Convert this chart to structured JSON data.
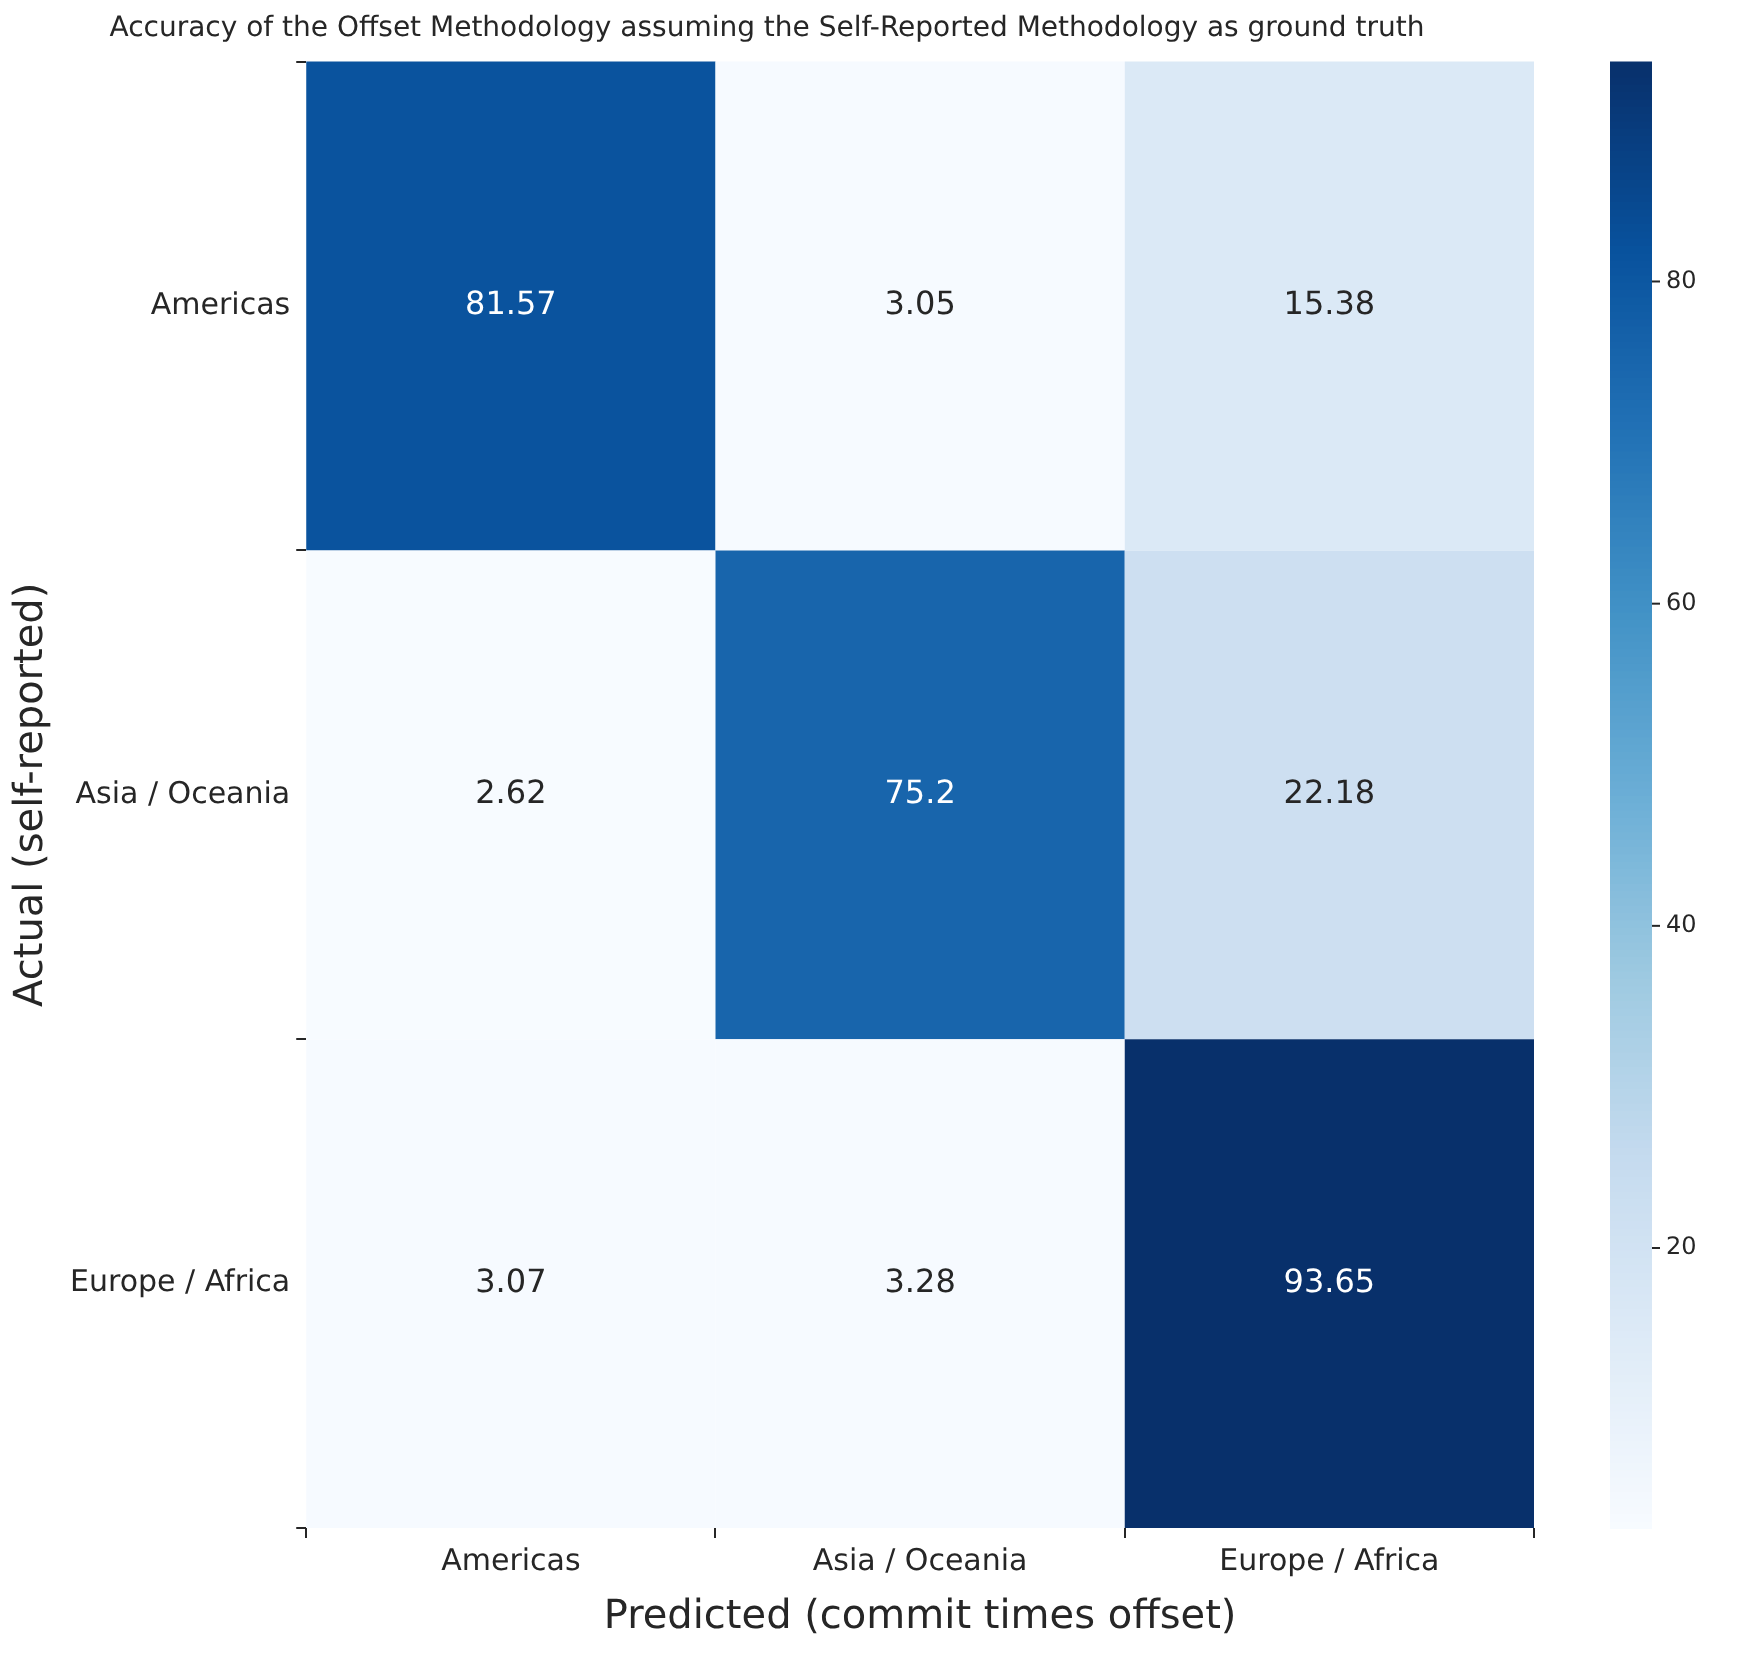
{
  "chart_data": {
    "type": "heatmap",
    "title": "Accuracy of the Offset Methodology assuming the Self-Reported Methodology as ground truth",
    "xlabel": "Predicted (commit times offset)",
    "ylabel": "Actual (self-reported)",
    "categories": [
      "Americas",
      "Asia / Oceania",
      "Europe / Africa"
    ],
    "y_categories": [
      "Americas",
      "Asia / Oceania",
      "Europe / Africa"
    ],
    "cells": [
      [
        81.57,
        3.05,
        15.38
      ],
      [
        2.62,
        75.2,
        22.18
      ],
      [
        3.07,
        3.28,
        93.65
      ]
    ],
    "clim": [
      2.62,
      93.65
    ],
    "cticks": [
      20,
      40,
      60,
      80
    ],
    "data_labels": true,
    "grid": false
  }
}
